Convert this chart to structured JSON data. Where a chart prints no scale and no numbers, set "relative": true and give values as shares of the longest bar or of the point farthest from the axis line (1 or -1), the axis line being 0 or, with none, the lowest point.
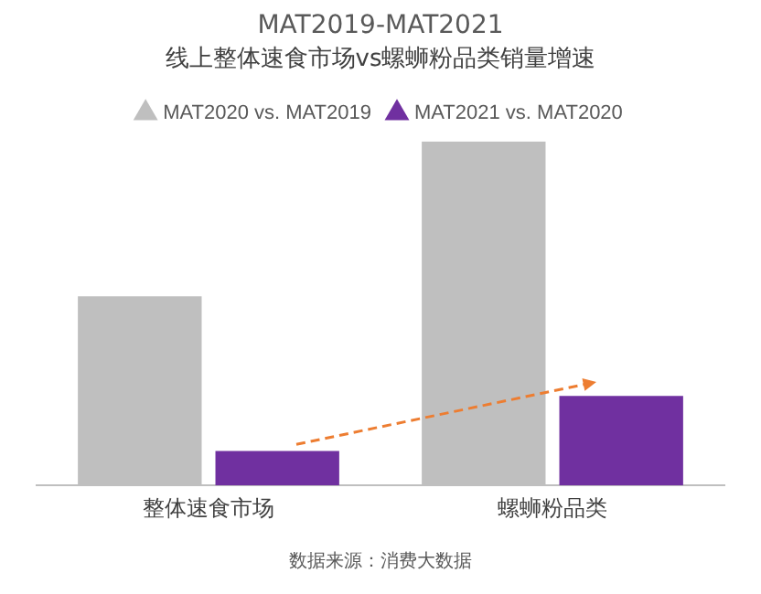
{
  "chart_data": {
    "type": "bar",
    "title": "MAT2019-MAT2021",
    "subtitle": "线上整体速食市场vs螺蛳粉品类销量增速",
    "categories": [
      "整体速食市场",
      "螺蛳粉品类"
    ],
    "series": [
      {
        "name": "MAT2020 vs. MAT2019",
        "color": "#bfbfbf",
        "values": [
          0.55,
          1
        ]
      },
      {
        "name": "MAT2021 vs. MAT2020",
        "color": "#7030a0",
        "values": [
          0.1,
          0.26
        ]
      }
    ],
    "relative": true,
    "legend": "top",
    "grid": false,
    "annotations": [
      "数据来源：消费大数据"
    ]
  }
}
